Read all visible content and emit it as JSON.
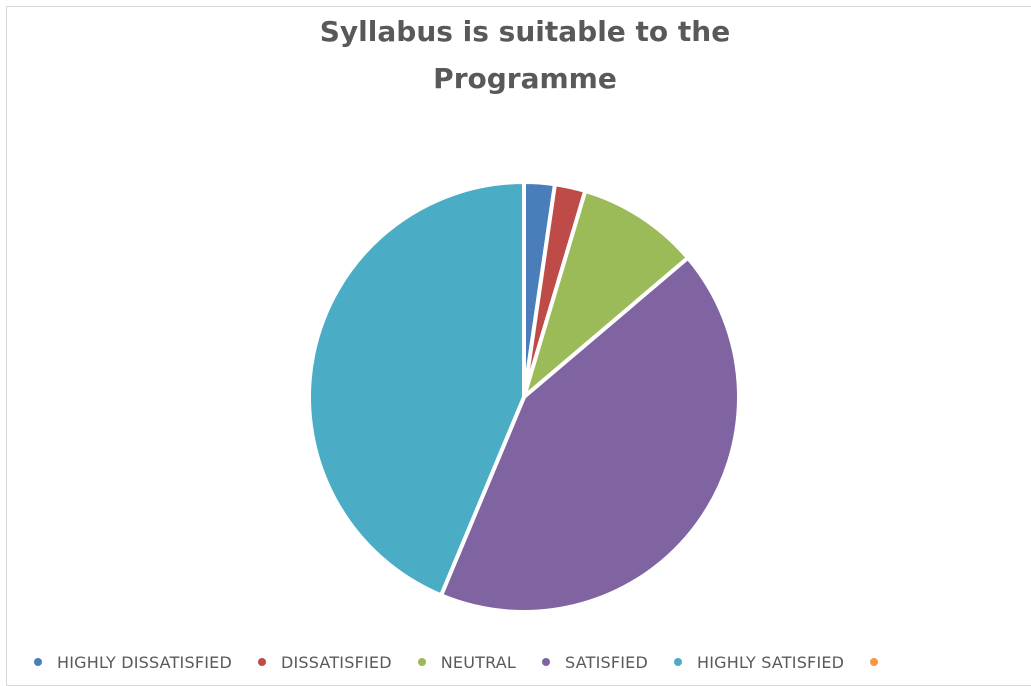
{
  "chart_data": {
    "type": "pie",
    "title": "Syllabus is suitable to the Programme",
    "title_lines": [
      "Syllabus is suitable to the",
      "Programme"
    ],
    "categories": [
      "HIGHLY DISSATISFIED",
      "DISSATISFIED",
      "NEUTRAL",
      "SATISFIED",
      "HIGHLY SATISFIED",
      ""
    ],
    "values": [
      2.3,
      2.3,
      9.2,
      42.5,
      43.7,
      0
    ],
    "colors": [
      "#4a7ebb",
      "#be4b48",
      "#9bbb59",
      "#8064a2",
      "#4bacc6",
      "#f79646"
    ],
    "legend_position": "bottom",
    "start_angle_deg": 0,
    "direction": "clockwise"
  }
}
